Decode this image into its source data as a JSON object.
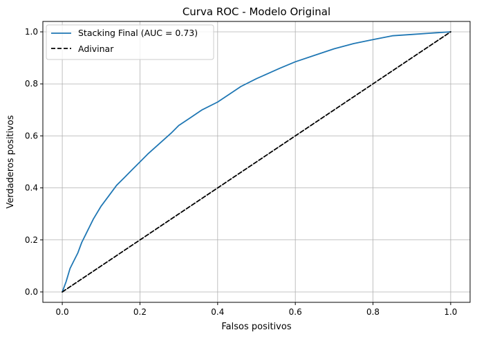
{
  "chart_data": {
    "type": "line",
    "title": "Curva ROC - Modelo Original",
    "xlabel": "Falsos positivos",
    "ylabel": "Verdaderos positivos",
    "xlim": [
      -0.05,
      1.05
    ],
    "ylim": [
      -0.04,
      1.04
    ],
    "xticks": [
      "0.0",
      "0.2",
      "0.4",
      "0.6",
      "0.8",
      "1.0"
    ],
    "yticks": [
      "0.0",
      "0.2",
      "0.4",
      "0.6",
      "0.8",
      "1.0"
    ],
    "grid": true,
    "legend_position": "top-left",
    "series": [
      {
        "name": "Stacking Final (AUC = 0.73)",
        "color": "#1f77b4",
        "style": "solid",
        "x": [
          0.0,
          0.01,
          0.02,
          0.03,
          0.04,
          0.05,
          0.06,
          0.08,
          0.1,
          0.12,
          0.14,
          0.16,
          0.18,
          0.2,
          0.22,
          0.25,
          0.28,
          0.3,
          0.33,
          0.36,
          0.4,
          0.43,
          0.46,
          0.5,
          0.53,
          0.56,
          0.6,
          0.65,
          0.7,
          0.75,
          0.8,
          0.85,
          0.9,
          0.95,
          1.0
        ],
        "y": [
          0.0,
          0.04,
          0.09,
          0.12,
          0.15,
          0.19,
          0.22,
          0.28,
          0.33,
          0.37,
          0.41,
          0.44,
          0.47,
          0.5,
          0.53,
          0.57,
          0.61,
          0.64,
          0.67,
          0.7,
          0.73,
          0.76,
          0.79,
          0.82,
          0.84,
          0.86,
          0.885,
          0.91,
          0.935,
          0.955,
          0.97,
          0.985,
          0.99,
          0.995,
          1.0
        ]
      },
      {
        "name": "Adivinar",
        "color": "#000000",
        "style": "dashed",
        "x": [
          0.0,
          1.0
        ],
        "y": [
          0.0,
          1.0
        ]
      }
    ]
  }
}
